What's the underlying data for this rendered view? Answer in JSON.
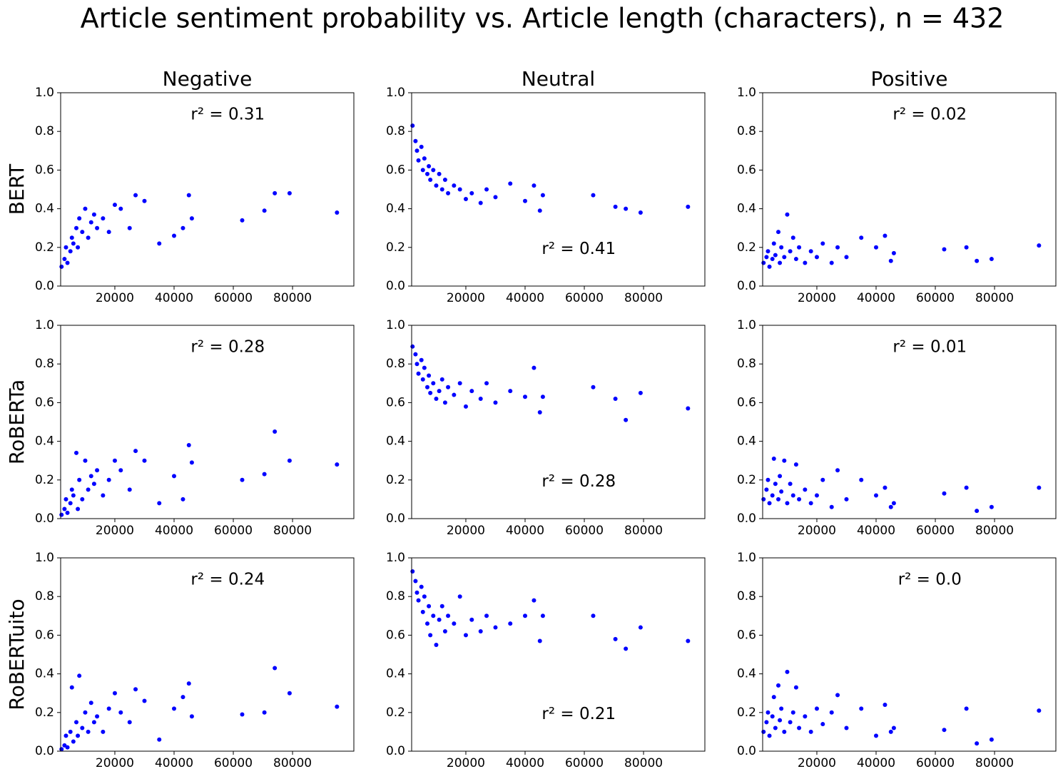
{
  "title": "Article sentiment probability vs. Article length (characters), n = 432",
  "chart_data": [
    {
      "type": "scatter",
      "title": "Negative",
      "ylabel": "BERT",
      "annotation": "r² = 0.31",
      "color": "#0000ff",
      "x": [
        2000,
        3000,
        3500,
        4000,
        5000,
        5500,
        6000,
        7000,
        7500,
        8000,
        9000,
        10000,
        11000,
        12000,
        13000,
        14000,
        16000,
        18000,
        20000,
        22000,
        25000,
        27000,
        30000,
        35000,
        40000,
        43000,
        45000,
        46000,
        63000,
        70500,
        74000,
        79000,
        95000
      ],
      "y": [
        0.1,
        0.14,
        0.2,
        0.12,
        0.18,
        0.25,
        0.22,
        0.3,
        0.2,
        0.35,
        0.28,
        0.4,
        0.25,
        0.33,
        0.37,
        0.3,
        0.35,
        0.28,
        0.42,
        0.4,
        0.3,
        0.47,
        0.44,
        0.22,
        0.26,
        0.3,
        0.47,
        0.35,
        0.34,
        0.39,
        0.48,
        0.48,
        0.38
      ],
      "xlim": [
        1700,
        100700
      ],
      "ylim": [
        0,
        1
      ],
      "xticks": [
        20000,
        40000,
        60000,
        80000
      ],
      "yticks": [
        {
          "value": 0,
          "label": "0.0"
        },
        0.2,
        0.4,
        0.6,
        0.8,
        {
          "value": 1,
          "label": "1.0"
        }
      ]
    },
    {
      "type": "scatter",
      "title": "Neutral",
      "annotation": "r² = 0.41",
      "color": "#0000ff",
      "x": [
        2000,
        3000,
        3500,
        4000,
        5000,
        5500,
        6000,
        7000,
        7500,
        8000,
        9000,
        10000,
        11000,
        12000,
        13000,
        14000,
        16000,
        18000,
        20000,
        22000,
        25000,
        27000,
        30000,
        35000,
        40000,
        43000,
        45000,
        46000,
        63000,
        70500,
        74000,
        79000,
        95000
      ],
      "y": [
        0.83,
        0.75,
        0.7,
        0.65,
        0.72,
        0.6,
        0.66,
        0.58,
        0.62,
        0.55,
        0.6,
        0.52,
        0.58,
        0.5,
        0.55,
        0.48,
        0.52,
        0.5,
        0.45,
        0.48,
        0.43,
        0.5,
        0.46,
        0.53,
        0.44,
        0.52,
        0.39,
        0.47,
        0.47,
        0.41,
        0.4,
        0.38,
        0.41
      ],
      "xlim": [
        1700,
        100700
      ],
      "ylim": [
        0,
        1
      ],
      "xticks": [
        20000,
        40000,
        60000,
        80000
      ],
      "yticks": [
        {
          "value": 0,
          "label": "0.0"
        },
        0.2,
        0.4,
        0.6,
        0.8,
        {
          "value": 1,
          "label": "1.0"
        }
      ]
    },
    {
      "type": "scatter",
      "title": "Positive",
      "annotation": "r² = 0.02",
      "color": "#0000ff",
      "x": [
        2000,
        3000,
        3500,
        4000,
        5000,
        5500,
        6000,
        7000,
        7500,
        8000,
        9000,
        10000,
        11000,
        12000,
        13000,
        14000,
        16000,
        18000,
        20000,
        22000,
        25000,
        27000,
        30000,
        35000,
        40000,
        43000,
        45000,
        46000,
        63000,
        70500,
        74000,
        79000,
        95000
      ],
      "y": [
        0.12,
        0.15,
        0.18,
        0.1,
        0.14,
        0.22,
        0.16,
        0.28,
        0.12,
        0.2,
        0.15,
        0.37,
        0.18,
        0.25,
        0.14,
        0.2,
        0.12,
        0.18,
        0.15,
        0.22,
        0.12,
        0.2,
        0.15,
        0.25,
        0.2,
        0.26,
        0.13,
        0.17,
        0.19,
        0.2,
        0.13,
        0.14,
        0.21
      ],
      "xlim": [
        1700,
        100700
      ],
      "ylim": [
        0,
        1
      ],
      "xticks": [
        20000,
        40000,
        60000,
        80000
      ],
      "yticks": [
        {
          "value": 0,
          "label": "0.0"
        },
        0.2,
        0.4,
        0.6,
        0.8,
        {
          "value": 1,
          "label": "1.0"
        }
      ]
    },
    {
      "type": "scatter",
      "ylabel": "RoBERTa",
      "annotation": "r² = 0.28",
      "color": "#0000ff",
      "x": [
        2000,
        3000,
        3500,
        4000,
        5000,
        5500,
        6000,
        7000,
        7500,
        8000,
        9000,
        10000,
        11000,
        12000,
        13000,
        14000,
        16000,
        18000,
        20000,
        22000,
        25000,
        27000,
        30000,
        35000,
        40000,
        43000,
        45000,
        46000,
        63000,
        70500,
        74000,
        79000,
        95000
      ],
      "y": [
        0.02,
        0.05,
        0.1,
        0.03,
        0.08,
        0.15,
        0.12,
        0.34,
        0.05,
        0.2,
        0.1,
        0.3,
        0.15,
        0.22,
        0.18,
        0.25,
        0.12,
        0.2,
        0.3,
        0.25,
        0.15,
        0.35,
        0.3,
        0.08,
        0.22,
        0.1,
        0.38,
        0.29,
        0.2,
        0.23,
        0.45,
        0.3,
        0.28
      ],
      "xlim": [
        1700,
        100700
      ],
      "ylim": [
        0,
        1
      ],
      "xticks": [
        20000,
        40000,
        60000,
        80000
      ],
      "yticks": [
        {
          "value": 0,
          "label": "0.0"
        },
        0.2,
        0.4,
        0.6,
        0.8,
        {
          "value": 1,
          "label": "1.0"
        }
      ]
    },
    {
      "type": "scatter",
      "annotation": "r² = 0.28",
      "color": "#0000ff",
      "x": [
        2000,
        3000,
        3500,
        4000,
        5000,
        5500,
        6000,
        7000,
        7500,
        8000,
        9000,
        10000,
        11000,
        12000,
        13000,
        14000,
        16000,
        18000,
        20000,
        22000,
        25000,
        27000,
        30000,
        35000,
        40000,
        43000,
        45000,
        46000,
        63000,
        70500,
        74000,
        79000,
        95000
      ],
      "y": [
        0.89,
        0.85,
        0.8,
        0.75,
        0.82,
        0.72,
        0.78,
        0.68,
        0.74,
        0.65,
        0.7,
        0.62,
        0.66,
        0.72,
        0.6,
        0.68,
        0.64,
        0.7,
        0.58,
        0.66,
        0.62,
        0.7,
        0.6,
        0.66,
        0.63,
        0.78,
        0.55,
        0.63,
        0.68,
        0.62,
        0.51,
        0.65,
        0.57
      ],
      "xlim": [
        1700,
        100700
      ],
      "ylim": [
        0,
        1
      ],
      "xticks": [
        20000,
        40000,
        60000,
        80000
      ],
      "yticks": [
        {
          "value": 0,
          "label": "0.0"
        },
        0.2,
        0.4,
        0.6,
        0.8,
        {
          "value": 1,
          "label": "1.0"
        }
      ]
    },
    {
      "type": "scatter",
      "annotation": "r² = 0.01",
      "color": "#0000ff",
      "x": [
        2000,
        3000,
        3500,
        4000,
        5000,
        5500,
        6000,
        7000,
        7500,
        8000,
        9000,
        10000,
        11000,
        12000,
        13000,
        14000,
        16000,
        18000,
        20000,
        22000,
        25000,
        27000,
        30000,
        35000,
        40000,
        43000,
        45000,
        46000,
        63000,
        70500,
        74000,
        79000,
        95000
      ],
      "y": [
        0.1,
        0.15,
        0.2,
        0.08,
        0.12,
        0.31,
        0.18,
        0.1,
        0.22,
        0.14,
        0.3,
        0.08,
        0.18,
        0.12,
        0.28,
        0.1,
        0.15,
        0.08,
        0.12,
        0.2,
        0.06,
        0.25,
        0.1,
        0.2,
        0.12,
        0.16,
        0.06,
        0.08,
        0.13,
        0.16,
        0.04,
        0.06,
        0.16
      ],
      "xlim": [
        1700,
        100700
      ],
      "ylim": [
        0,
        1
      ],
      "xticks": [
        20000,
        40000,
        60000,
        80000
      ],
      "yticks": [
        {
          "value": 0,
          "label": "0.0"
        },
        0.2,
        0.4,
        0.6,
        0.8,
        {
          "value": 1,
          "label": "1.0"
        }
      ]
    },
    {
      "type": "scatter",
      "ylabel": "RoBERTuito",
      "annotation": "r² = 0.24",
      "color": "#0000ff",
      "x": [
        2000,
        3000,
        3500,
        4000,
        5000,
        5500,
        6000,
        7000,
        7500,
        8000,
        9000,
        10000,
        11000,
        12000,
        13000,
        14000,
        16000,
        18000,
        20000,
        22000,
        25000,
        27000,
        30000,
        35000,
        40000,
        43000,
        45000,
        46000,
        63000,
        70500,
        74000,
        79000,
        95000
      ],
      "y": [
        0.01,
        0.03,
        0.08,
        0.02,
        0.1,
        0.33,
        0.05,
        0.15,
        0.08,
        0.39,
        0.12,
        0.2,
        0.1,
        0.25,
        0.15,
        0.18,
        0.1,
        0.22,
        0.3,
        0.2,
        0.15,
        0.32,
        0.26,
        0.06,
        0.22,
        0.28,
        0.35,
        0.18,
        0.19,
        0.2,
        0.43,
        0.3,
        0.23
      ],
      "xlim": [
        1700,
        100700
      ],
      "ylim": [
        0,
        1
      ],
      "xticks": [
        20000,
        40000,
        60000,
        80000
      ],
      "yticks": [
        {
          "value": 0,
          "label": "0.0"
        },
        0.2,
        0.4,
        0.6,
        0.8,
        {
          "value": 1,
          "label": "1.0"
        }
      ]
    },
    {
      "type": "scatter",
      "annotation": "r² = 0.21",
      "color": "#0000ff",
      "x": [
        2000,
        3000,
        3500,
        4000,
        5000,
        5500,
        6000,
        7000,
        7500,
        8000,
        9000,
        10000,
        11000,
        12000,
        13000,
        14000,
        16000,
        18000,
        20000,
        22000,
        25000,
        27000,
        30000,
        35000,
        40000,
        43000,
        45000,
        46000,
        63000,
        70500,
        74000,
        79000,
        95000
      ],
      "y": [
        0.93,
        0.88,
        0.82,
        0.78,
        0.85,
        0.72,
        0.8,
        0.66,
        0.75,
        0.6,
        0.7,
        0.55,
        0.68,
        0.75,
        0.62,
        0.7,
        0.66,
        0.8,
        0.6,
        0.68,
        0.62,
        0.7,
        0.64,
        0.66,
        0.7,
        0.78,
        0.57,
        0.7,
        0.7,
        0.58,
        0.53,
        0.64,
        0.57
      ],
      "xlim": [
        1700,
        100700
      ],
      "ylim": [
        0,
        1
      ],
      "xticks": [
        20000,
        40000,
        60000,
        80000
      ],
      "yticks": [
        {
          "value": 0,
          "label": "0.0"
        },
        0.2,
        0.4,
        0.6,
        0.8,
        {
          "value": 1,
          "label": "1.0"
        }
      ]
    },
    {
      "type": "scatter",
      "annotation": "r² = 0.0",
      "color": "#0000ff",
      "x": [
        2000,
        3000,
        3500,
        4000,
        5000,
        5500,
        6000,
        7000,
        7500,
        8000,
        9000,
        10000,
        11000,
        12000,
        13000,
        14000,
        16000,
        18000,
        20000,
        22000,
        25000,
        27000,
        30000,
        35000,
        40000,
        43000,
        45000,
        46000,
        63000,
        70500,
        74000,
        79000,
        95000
      ],
      "y": [
        0.1,
        0.15,
        0.2,
        0.08,
        0.18,
        0.28,
        0.12,
        0.34,
        0.16,
        0.22,
        0.1,
        0.41,
        0.15,
        0.2,
        0.33,
        0.12,
        0.18,
        0.1,
        0.22,
        0.14,
        0.2,
        0.29,
        0.12,
        0.22,
        0.08,
        0.24,
        0.1,
        0.12,
        0.11,
        0.22,
        0.04,
        0.06,
        0.21
      ],
      "xlim": [
        1700,
        100700
      ],
      "ylim": [
        0,
        1
      ],
      "xticks": [
        20000,
        40000,
        60000,
        80000
      ],
      "yticks": [
        {
          "value": 0,
          "label": "0.0"
        },
        0.2,
        0.4,
        0.6,
        0.8,
        {
          "value": 1,
          "label": "1.0"
        }
      ]
    }
  ]
}
